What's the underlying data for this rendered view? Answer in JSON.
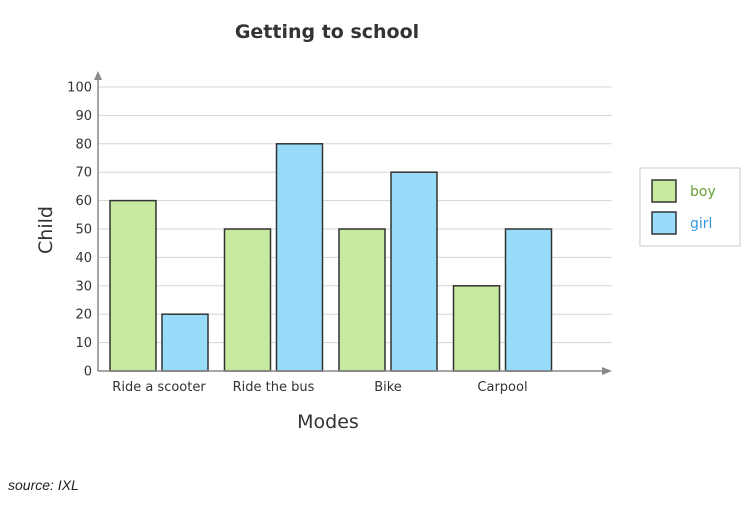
{
  "source_text": "source: IXL",
  "chart_data": {
    "type": "bar",
    "title": "Getting to school",
    "xlabel": "Modes",
    "ylabel": "Child",
    "categories": [
      "Ride a scooter",
      "Ride the bus",
      "Bike",
      "Carpool"
    ],
    "series": [
      {
        "name": "boy",
        "values": [
          60,
          50,
          50,
          30
        ],
        "color": "#c8eaa0",
        "label_color": "#6aa032"
      },
      {
        "name": "girl",
        "values": [
          20,
          80,
          70,
          50
        ],
        "color": "#99dcfa",
        "label_color": "#3399dd"
      }
    ],
    "ylim": [
      0,
      100
    ],
    "yticks": [
      0,
      10,
      20,
      30,
      40,
      50,
      60,
      70,
      80,
      90,
      100
    ],
    "grid": true,
    "legend_position": "right"
  }
}
